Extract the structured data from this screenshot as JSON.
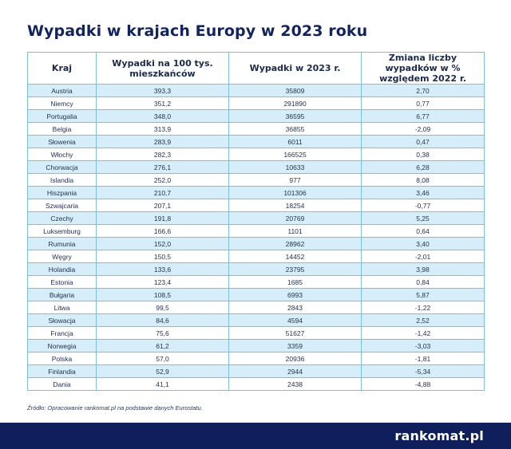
{
  "title": "Wypadki w krajach Europy w 2023 roku",
  "table": {
    "headers": [
      "Kraj",
      "Wypadki na 100 tys. mieszkańców",
      "Wypadki w 2023 r.",
      "Zmiana liczby wypadków w % względem 2022 r."
    ],
    "rows": [
      [
        "Austria",
        "393,3",
        "35809",
        "2,70"
      ],
      [
        "Niemcy",
        "351,2",
        "291890",
        "0,77"
      ],
      [
        "Portugalia",
        "348,0",
        "36595",
        "6,77"
      ],
      [
        "Belgia",
        "313,9",
        "36855",
        "-2,09"
      ],
      [
        "Słowenia",
        "283,9",
        "6011",
        "0,47"
      ],
      [
        "Włochy",
        "282,3",
        "166525",
        "0,38"
      ],
      [
        "Chorwacja",
        "276,1",
        "10633",
        "6,28"
      ],
      [
        "Islandia",
        "252,0",
        "977",
        "8,08"
      ],
      [
        "Hiszpania",
        "210,7",
        "101306",
        "3,46"
      ],
      [
        "Szwajcaria",
        "207,1",
        "18254",
        "-0,77"
      ],
      [
        "Czechy",
        "191,8",
        "20769",
        "5,25"
      ],
      [
        "Luksemburg",
        "166,6",
        "1101",
        "0,64"
      ],
      [
        "Rumunia",
        "152,0",
        "28962",
        "3,40"
      ],
      [
        "Węgry",
        "150,5",
        "14452",
        "-2,01"
      ],
      [
        "Holandia",
        "133,6",
        "23795",
        "3,98"
      ],
      [
        "Estonia",
        "123,4",
        "1685",
        "0,84"
      ],
      [
        "Bułgaria",
        "108,5",
        "6993",
        "5,87"
      ],
      [
        "Litwa",
        "99,5",
        "2843",
        "-1,22"
      ],
      [
        "Słowacja",
        "84,6",
        "4594",
        "2,52"
      ],
      [
        "Francja",
        "75,6",
        "51627",
        "-1,42"
      ],
      [
        "Norwegia",
        "61,2",
        "3359",
        "-3,03"
      ],
      [
        "Polska",
        "57,0",
        "20936",
        "-1,81"
      ],
      [
        "Finlandia",
        "52,9",
        "2944",
        "-5,34"
      ],
      [
        "Dania",
        "41,1",
        "2438",
        "-4,88"
      ]
    ]
  },
  "source": "Źródło: Opracowanie rankomat.pl na podstawie danych Eurostatu.",
  "footer": {
    "logo": "rankomat.pl"
  },
  "colors": {
    "title": "#13245c",
    "row_alt": "#d6eef9",
    "border": "#7cc0e0",
    "footer_bg": "#0e1f5b"
  }
}
